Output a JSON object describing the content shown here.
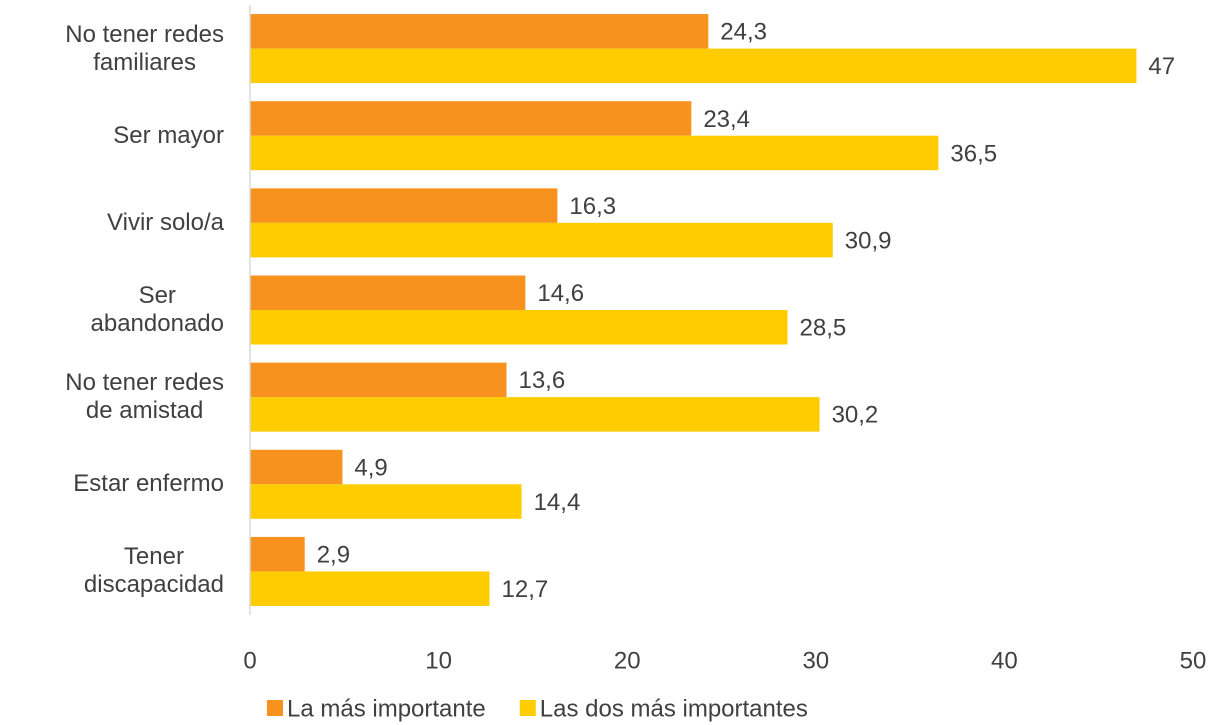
{
  "chart_data": {
    "type": "hbar",
    "categories": [
      "No tener redes\nfamiliares",
      "Ser mayor",
      "Vivir solo/a",
      "Ser\nabandonado",
      "No tener redes\nde amistad",
      "Estar enfermo",
      "Tener\ndiscapacidad"
    ],
    "series": [
      {
        "name": "La más importante",
        "color": "#f7921e",
        "values": [
          24.3,
          23.4,
          16.3,
          14.6,
          13.6,
          4.9,
          2.9
        ],
        "value_labels": [
          "24,3",
          "23,4",
          "16,3",
          "14,6",
          "13,6",
          "4,9",
          "2,9"
        ]
      },
      {
        "name": "Las dos más importantes",
        "color": "#ffcc00",
        "values": [
          47,
          36.5,
          30.9,
          28.5,
          30.2,
          14.4,
          12.7
        ],
        "value_labels": [
          "47",
          "36,5",
          "30,9",
          "28,5",
          "30,2",
          "14,4",
          "12,7"
        ]
      }
    ],
    "xlim": [
      0,
      50
    ],
    "xticks": [
      0,
      10,
      20,
      30,
      40,
      50
    ],
    "grid": false,
    "legend": "bottom"
  }
}
